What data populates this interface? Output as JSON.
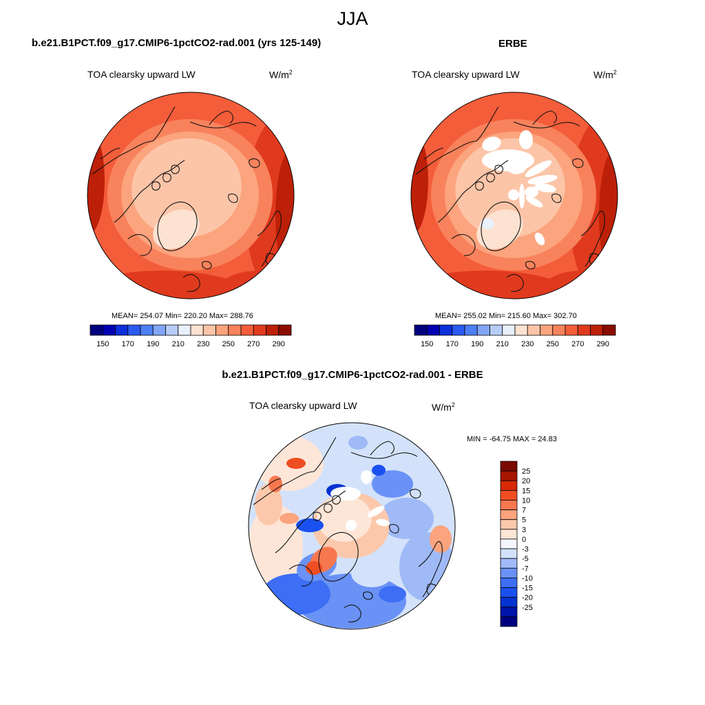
{
  "figure": {
    "main_title": "JJA",
    "colors": {
      "abs_levels": [
        "#00007f",
        "#0000b2",
        "#0d2fdc",
        "#2a5af0",
        "#4d7ff5",
        "#82a6f7",
        "#b7cdf8",
        "#e8f0fb",
        "#fde2d1",
        "#fcc5a8",
        "#fba47e",
        "#f8825c",
        "#f45d3a",
        "#e03a1e",
        "#bd2008",
        "#8a0c00"
      ],
      "diff_levels": [
        "#00007f",
        "#0013a8",
        "#0533d1",
        "#1a50f0",
        "#3d6ef5",
        "#6a92f6",
        "#9fbaf7",
        "#d3e2fa",
        "#f4f7fd",
        "#fde6d8",
        "#fcc8ab",
        "#fba47e",
        "#f7774f",
        "#ef4d22",
        "#d62a04",
        "#a51600",
        "#7a0a00"
      ]
    },
    "panels": [
      {
        "title": "b.e21.B1PCT.f09_g17.CMIP6-1pctCO2-rad.001 (yrs 125-149)",
        "variable": "TOA clearsky upward LW",
        "units_base": "W/m",
        "units_exp": "2",
        "stats": "MEAN= 254.07  Min= 220.20  Max= 288.76"
      },
      {
        "title": "ERBE",
        "variable": "TOA clearsky upward LW",
        "units_base": "W/m",
        "units_exp": "2",
        "stats": "MEAN= 255.02  Min= 215.60  Max= 302.70"
      },
      {
        "title": "b.e21.B1PCT.f09_g17.CMIP6-1pctCO2-rad.001 - ERBE",
        "variable": "TOA clearsky upward LW",
        "units_base": "W/m",
        "units_exp": "2",
        "stats": "MIN = -64.75 MAX =  24.83"
      }
    ]
  },
  "chart_data": [
    {
      "type": "heatmap",
      "projection": "north-polar-stereographic",
      "title": "b.e21.B1PCT.f09_g17.CMIP6-1pctCO2-rad.001 (yrs 125-149)",
      "variable": "TOA clearsky upward LW",
      "units": "W/m2",
      "mean": 254.07,
      "min": 220.2,
      "max": 288.76,
      "colorbar_ticks": [
        "150",
        "170",
        "190",
        "210",
        "230",
        "250",
        "270",
        "290"
      ]
    },
    {
      "type": "heatmap",
      "projection": "north-polar-stereographic",
      "title": "ERBE",
      "variable": "TOA clearsky upward LW",
      "units": "W/m2",
      "mean": 255.02,
      "min": 215.6,
      "max": 302.7,
      "colorbar_ticks": [
        "150",
        "170",
        "190",
        "210",
        "230",
        "250",
        "270",
        "290"
      ]
    },
    {
      "type": "heatmap",
      "projection": "north-polar-stereographic",
      "title": "b.e21.B1PCT.f09_g17.CMIP6-1pctCO2-rad.001 - ERBE",
      "variable": "TOA clearsky upward LW",
      "units": "W/m2",
      "min": -64.75,
      "max": 24.83,
      "colorbar_ticks": [
        "25",
        "20",
        "15",
        "10",
        "7",
        "5",
        "3",
        "0",
        "-3",
        "-5",
        "-7",
        "-10",
        "-15",
        "-20",
        "-25"
      ]
    }
  ]
}
